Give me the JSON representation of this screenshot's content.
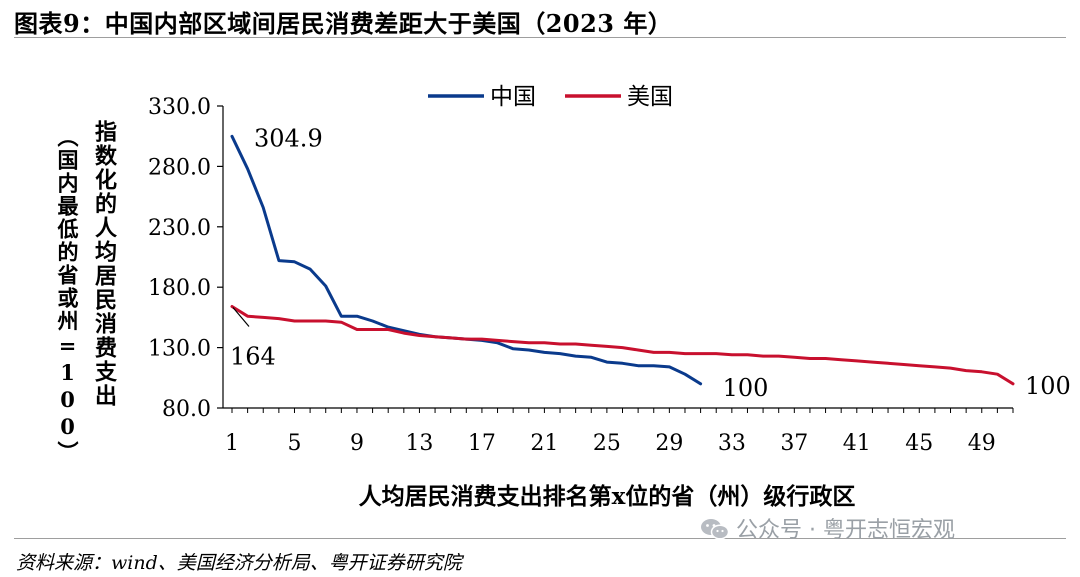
{
  "header": {
    "title": "图表9：中国内部区域间居民消费差距大于美国（2023 年）"
  },
  "footer": {
    "source": "资料来源：wind、美国经济分析局、粤开证券研究院"
  },
  "watermark": {
    "text": "公众号 · 粤开志恒宏观"
  },
  "chart_data": {
    "type": "line",
    "title": "",
    "xlabel": "人均居民消费支出排名第x位的省（州）级行政区",
    "ylabel_main": "指数化的人均居民消费支出",
    "ylabel_sub": "（国内最低的省或州=100）",
    "xlim": [
      1,
      51
    ],
    "ylim": [
      80,
      330
    ],
    "x_ticks": [
      1,
      5,
      9,
      13,
      17,
      21,
      25,
      29,
      33,
      37,
      41,
      45,
      49
    ],
    "y_ticks": [
      80.0,
      130.0,
      180.0,
      230.0,
      280.0,
      330.0
    ],
    "y_tick_labels": [
      "80.0",
      "130.0",
      "180.0",
      "230.0",
      "280.0",
      "330.0"
    ],
    "grid": false,
    "legend_position": "top",
    "series": [
      {
        "name": "中国",
        "color": "#0a3a8c",
        "x": [
          1,
          2,
          3,
          4,
          5,
          6,
          7,
          8,
          9,
          10,
          11,
          12,
          13,
          14,
          15,
          16,
          17,
          18,
          19,
          20,
          21,
          22,
          23,
          24,
          25,
          26,
          27,
          28,
          29,
          30,
          31
        ],
        "values": [
          304.9,
          278,
          246,
          202,
          201,
          195,
          181,
          156,
          156,
          152,
          147,
          144,
          141,
          139,
          138,
          137,
          136,
          134,
          129,
          128,
          126,
          125,
          123,
          122,
          118,
          117,
          115,
          115,
          114,
          108,
          100
        ]
      },
      {
        "name": "美国",
        "color": "#c8102e",
        "x": [
          1,
          2,
          3,
          4,
          5,
          6,
          7,
          8,
          9,
          10,
          11,
          12,
          13,
          14,
          15,
          16,
          17,
          18,
          19,
          20,
          21,
          22,
          23,
          24,
          25,
          26,
          27,
          28,
          29,
          30,
          31,
          32,
          33,
          34,
          35,
          36,
          37,
          38,
          39,
          40,
          41,
          42,
          43,
          44,
          45,
          46,
          47,
          48,
          49,
          50,
          51
        ],
        "values": [
          164,
          156,
          155,
          154,
          152,
          152,
          152,
          151,
          145,
          145,
          145,
          142,
          140,
          139,
          138,
          137,
          137,
          136,
          135,
          134,
          134,
          133,
          133,
          132,
          131,
          130,
          128,
          126,
          126,
          125,
          125,
          125,
          124,
          124,
          123,
          123,
          122,
          121,
          121,
          120,
          119,
          118,
          117,
          116,
          115,
          114,
          113,
          111,
          110,
          108,
          100
        ]
      }
    ],
    "annotations": [
      {
        "text": "304.9",
        "series": "中国",
        "x": 1,
        "y": 304.9
      },
      {
        "text": "164",
        "series": "美国",
        "x": 1,
        "y": 164
      },
      {
        "text": "100",
        "series": "中国",
        "x": 31,
        "y": 100
      },
      {
        "text": "100",
        "series": "美国",
        "x": 51,
        "y": 100
      }
    ]
  }
}
